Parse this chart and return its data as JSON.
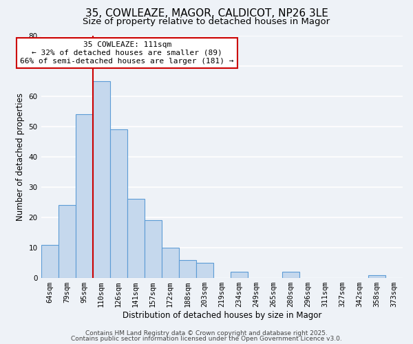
{
  "title": "35, COWLEAZE, MAGOR, CALDICOT, NP26 3LE",
  "subtitle": "Size of property relative to detached houses in Magor",
  "xlabel": "Distribution of detached houses by size in Magor",
  "ylabel": "Number of detached properties",
  "categories": [
    "64sqm",
    "79sqm",
    "95sqm",
    "110sqm",
    "126sqm",
    "141sqm",
    "157sqm",
    "172sqm",
    "188sqm",
    "203sqm",
    "219sqm",
    "234sqm",
    "249sqm",
    "265sqm",
    "280sqm",
    "296sqm",
    "311sqm",
    "327sqm",
    "342sqm",
    "358sqm",
    "373sqm"
  ],
  "values": [
    11,
    24,
    54,
    65,
    49,
    26,
    19,
    10,
    6,
    5,
    0,
    2,
    0,
    0,
    2,
    0,
    0,
    0,
    0,
    1,
    0
  ],
  "bar_color": "#c5d8ed",
  "bar_edge_color": "#5b9bd5",
  "vline_color": "#cc0000",
  "vline_bar_index": 3,
  "annotation_text": "35 COWLEAZE: 111sqm\n← 32% of detached houses are smaller (89)\n66% of semi-detached houses are larger (181) →",
  "annotation_box_color": "white",
  "annotation_box_edge_color": "#cc0000",
  "ylim": [
    0,
    80
  ],
  "yticks": [
    0,
    10,
    20,
    30,
    40,
    50,
    60,
    70,
    80
  ],
  "background_color": "#eef2f7",
  "grid_color": "white",
  "footer_line1": "Contains HM Land Registry data © Crown copyright and database right 2025.",
  "footer_line2": "Contains public sector information licensed under the Open Government Licence v3.0.",
  "title_fontsize": 11,
  "subtitle_fontsize": 9.5,
  "axis_label_fontsize": 8.5,
  "tick_fontsize": 7.5,
  "annotation_fontsize": 8,
  "footer_fontsize": 6.5
}
